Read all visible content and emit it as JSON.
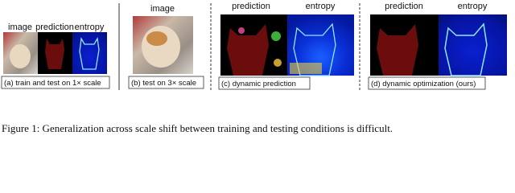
{
  "panels": [
    {
      "caption": "(a) train and test on 1× scale",
      "labels": [
        "image",
        "prediction",
        "entropy"
      ]
    },
    {
      "caption": "(b) test on 3× scale",
      "labels": [
        "image"
      ]
    },
    {
      "caption": "(c) dynamic prediction",
      "labels": [
        "prediction",
        "entropy"
      ]
    },
    {
      "caption": "(d) dynamic optimization (ours)",
      "labels": [
        "prediction",
        "entropy"
      ]
    }
  ],
  "figure_caption": "Figure 1: Generalization across scale shift between training and testing conditions is difficult."
}
